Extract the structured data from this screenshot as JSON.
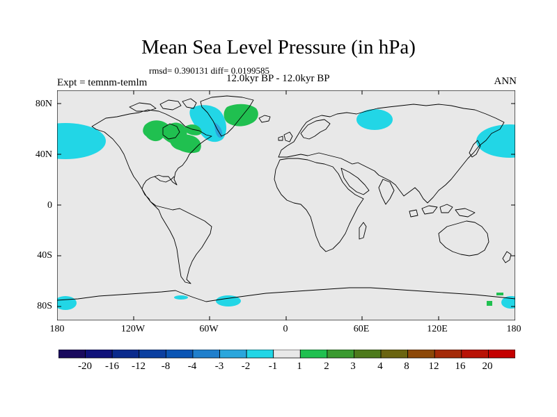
{
  "title": "Mean Sea Level Pressure (in hPa)",
  "stats": "rmsd= 0.390131 diff= 0.0199585",
  "period": "12.0kyr BP - 12.0kyr BP",
  "experiment": "Expt = temnm-temlm",
  "season": "ANN",
  "lat_labels": [
    "80N",
    "40N",
    "0",
    "40S",
    "80S"
  ],
  "lon_labels": [
    "180",
    "120W",
    "60W",
    "0",
    "60E",
    "120E",
    "180"
  ],
  "colorbar": {
    "labels": [
      "-20",
      "-16",
      "-12",
      "-8",
      "-4",
      "-3",
      "-2",
      "-1",
      "1",
      "2",
      "3",
      "4",
      "8",
      "12",
      "16",
      "20"
    ],
    "colors": [
      "#1a0a5e",
      "#10127a",
      "#0a2a8c",
      "#0b3fa0",
      "#0a55b4",
      "#1f7fcc",
      "#2aa6dc",
      "#22d6e6",
      "#e8e8e8",
      "#20c050",
      "#3a9a30",
      "#4d7a1c",
      "#6a6410",
      "#8c4808",
      "#a42a08",
      "#b81206",
      "#c40000"
    ]
  },
  "colors": {
    "land_ocean": "#e8e8e8",
    "negative_anomaly": "#22d6e6",
    "negative_anomaly_strong": "#2aa6dc",
    "positive_anomaly": "#20c050"
  }
}
